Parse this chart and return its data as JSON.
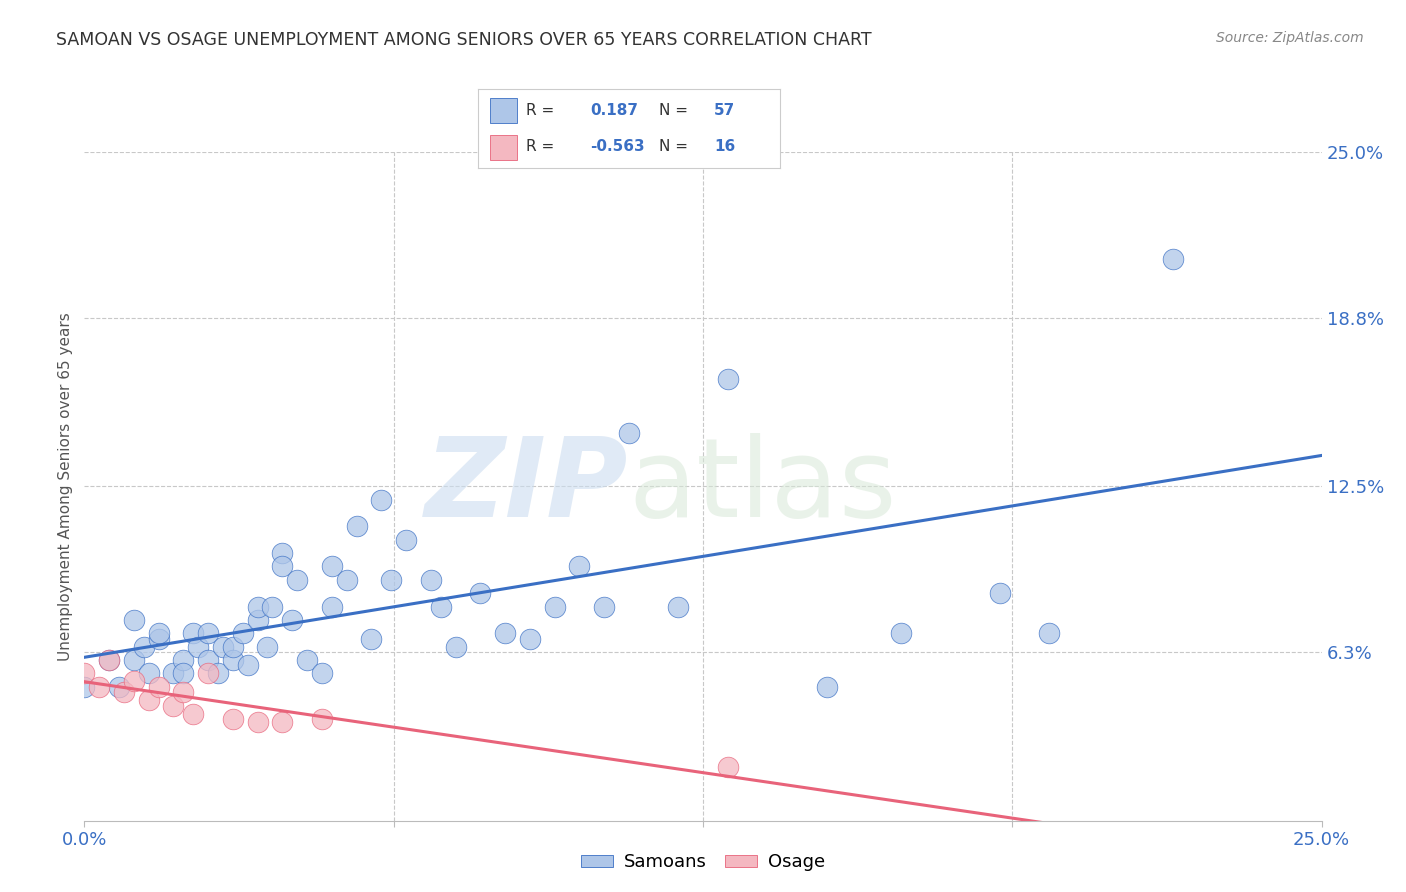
{
  "title": "SAMOAN VS OSAGE UNEMPLOYMENT AMONG SENIORS OVER 65 YEARS CORRELATION CHART",
  "source": "Source: ZipAtlas.com",
  "ylabel": "Unemployment Among Seniors over 65 years",
  "xlim": [
    0.0,
    0.25
  ],
  "ylim": [
    0.0,
    0.25
  ],
  "ytick_labels_right": [
    "6.3%",
    "12.5%",
    "18.8%",
    "25.0%"
  ],
  "ytick_vals_right": [
    0.063,
    0.125,
    0.188,
    0.25
  ],
  "grid_color": "#c8c8c8",
  "background_color": "#ffffff",
  "samoans_color": "#aec6e8",
  "osage_color": "#f4b8c1",
  "samoans_line_color": "#3a6fc4",
  "osage_line_color": "#e8637a",
  "samoans_R": 0.187,
  "samoans_N": 57,
  "osage_R": -0.563,
  "osage_N": 16,
  "samoans_x": [
    0.0,
    0.005,
    0.007,
    0.01,
    0.01,
    0.012,
    0.013,
    0.015,
    0.015,
    0.018,
    0.02,
    0.02,
    0.022,
    0.023,
    0.025,
    0.025,
    0.027,
    0.028,
    0.03,
    0.03,
    0.032,
    0.033,
    0.035,
    0.035,
    0.037,
    0.038,
    0.04,
    0.04,
    0.042,
    0.043,
    0.045,
    0.048,
    0.05,
    0.05,
    0.053,
    0.055,
    0.058,
    0.06,
    0.062,
    0.065,
    0.07,
    0.072,
    0.075,
    0.08,
    0.085,
    0.09,
    0.095,
    0.1,
    0.105,
    0.11,
    0.12,
    0.13,
    0.15,
    0.165,
    0.185,
    0.195,
    0.22
  ],
  "samoans_y": [
    0.05,
    0.06,
    0.05,
    0.075,
    0.06,
    0.065,
    0.055,
    0.068,
    0.07,
    0.055,
    0.06,
    0.055,
    0.07,
    0.065,
    0.06,
    0.07,
    0.055,
    0.065,
    0.06,
    0.065,
    0.07,
    0.058,
    0.075,
    0.08,
    0.065,
    0.08,
    0.1,
    0.095,
    0.075,
    0.09,
    0.06,
    0.055,
    0.095,
    0.08,
    0.09,
    0.11,
    0.068,
    0.12,
    0.09,
    0.105,
    0.09,
    0.08,
    0.065,
    0.085,
    0.07,
    0.068,
    0.08,
    0.095,
    0.08,
    0.145,
    0.08,
    0.165,
    0.05,
    0.07,
    0.085,
    0.07,
    0.21
  ],
  "osage_x": [
    0.0,
    0.003,
    0.005,
    0.008,
    0.01,
    0.013,
    0.015,
    0.018,
    0.02,
    0.022,
    0.025,
    0.03,
    0.035,
    0.04,
    0.048,
    0.13
  ],
  "osage_y": [
    0.055,
    0.05,
    0.06,
    0.048,
    0.052,
    0.045,
    0.05,
    0.043,
    0.048,
    0.04,
    0.055,
    0.038,
    0.037,
    0.037,
    0.038,
    0.02
  ]
}
